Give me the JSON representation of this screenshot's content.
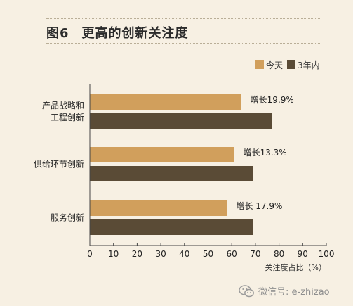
{
  "header": {
    "fig_num": "图6",
    "title": "更高的创新关注度"
  },
  "footer": {
    "text": "微信号: e-zhizao",
    "icon": "wechat-icon"
  },
  "colors": {
    "today": "#d19f5c",
    "three_years": "#5a4b36",
    "background": "#f7f0e3",
    "axis": "#444444"
  },
  "chart_data": {
    "type": "bar",
    "orientation": "horizontal",
    "categories": [
      [
        "产品战略和",
        "工程创新"
      ],
      [
        "供给环节创新"
      ],
      [
        "服务创新"
      ]
    ],
    "series": [
      {
        "name": "今天",
        "values": [
          64,
          61,
          58
        ]
      },
      {
        "name": "3年内",
        "values": [
          77,
          69,
          69
        ]
      }
    ],
    "annotations": [
      "增长19.9%",
      "增长13.3%",
      "增长 17.9%"
    ],
    "xlim": [
      0,
      100
    ],
    "xticks": [
      "0",
      "10",
      "20",
      "30",
      "40",
      "50",
      "60",
      "70",
      "80",
      "90",
      "100"
    ],
    "xlabel": "关注度占比（%）",
    "ylabel": "",
    "legend_position": "top-right",
    "grid": false
  }
}
